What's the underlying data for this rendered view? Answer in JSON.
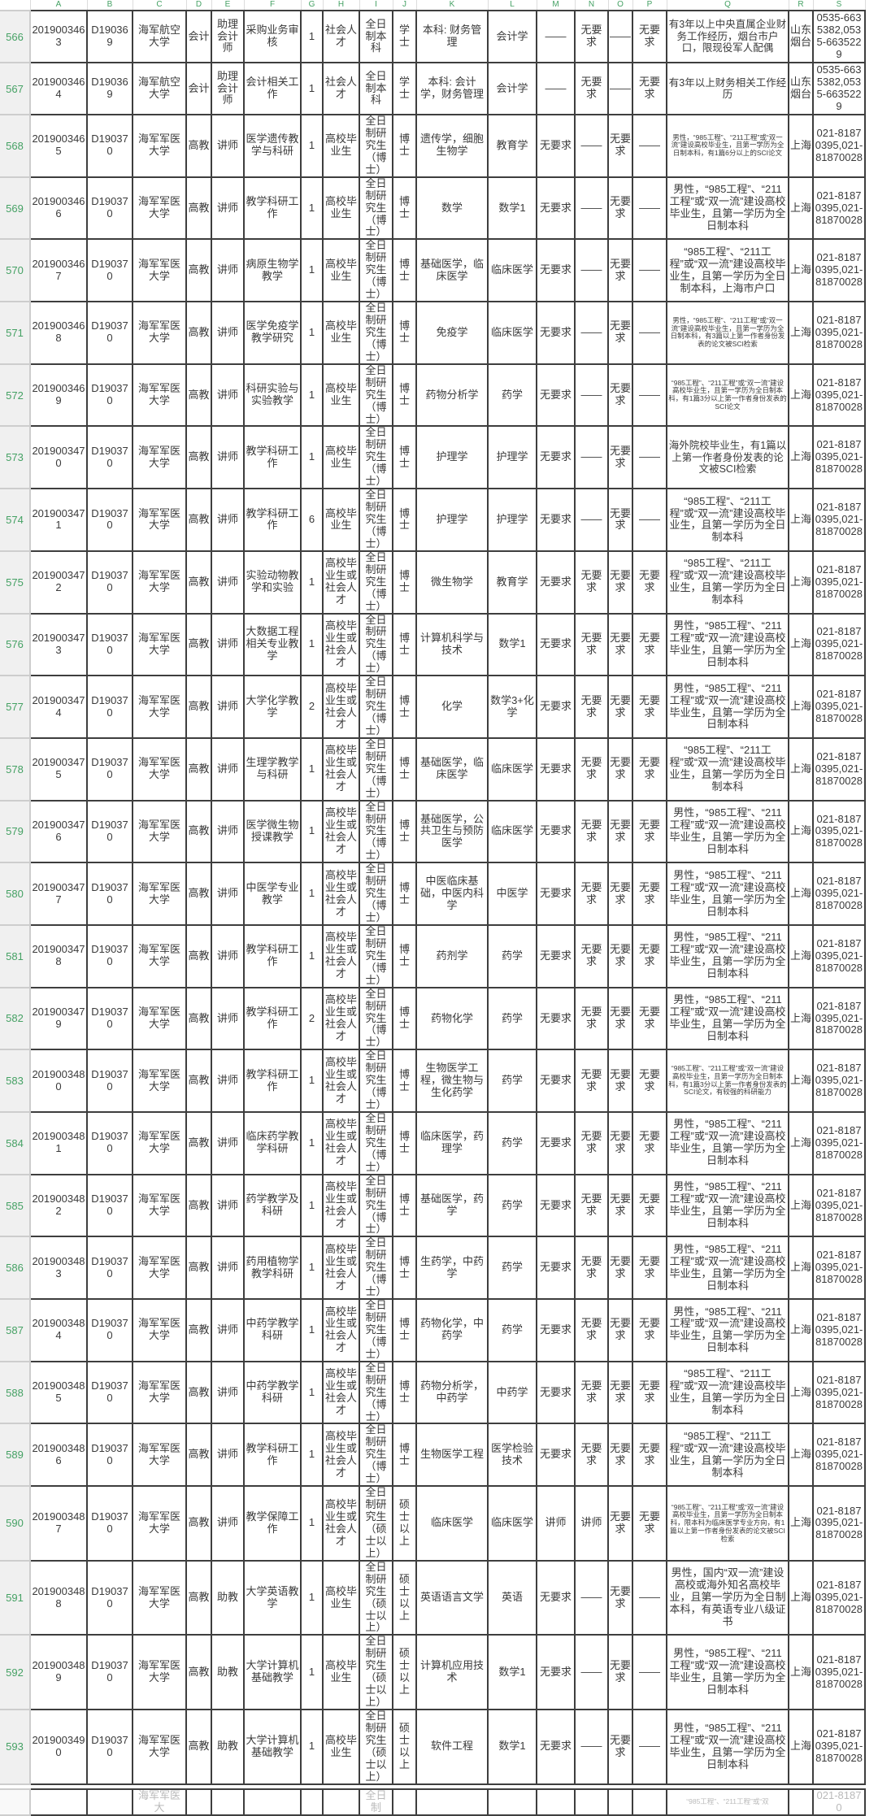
{
  "app": {
    "kind": "mobile-spreadsheet-viewer"
  },
  "colors": {
    "header_green": "#45a164",
    "grid_dark": "#3e3e3e",
    "grid_light": "#cdcdcd",
    "gutter_bg": "#f0f0f0",
    "cell_text": "#3a3a3a"
  },
  "header": {
    "corner": "",
    "columns": [
      "A",
      "B",
      "C",
      "D",
      "E",
      "F",
      "G",
      "H",
      "I",
      "J",
      "K",
      "L",
      "M",
      "N",
      "O",
      "P",
      "Q",
      "R",
      "S"
    ]
  },
  "rows": [
    {
      "n": "566",
      "q_size": "l",
      "cells": [
        "2019003463",
        "D190369",
        "海军航空大学",
        "会计",
        "助理会计师",
        "采购业务审核",
        "1",
        "社会人才",
        "全日制本科",
        "学士",
        "本科: 财务管理",
        "会计学",
        "——",
        "无要求",
        "——",
        "无要求",
        "有3年以上中央直属企业财务工作经历，烟台市户口，限现役军人配偶",
        "山东烟台",
        "0535-6635382,0535-6635229"
      ]
    },
    {
      "n": "567",
      "q_size": "l",
      "cells": [
        "2019003464",
        "D190369",
        "海军航空大学",
        "会计",
        "助理会计师",
        "会计相关工作",
        "1",
        "社会人才",
        "全日制本科",
        "学士",
        "本科: 会计学，财务管理",
        "会计学",
        "——",
        "无要求",
        "——",
        "无要求",
        "有3年以上财务相关工作经历",
        "山东烟台",
        "0535-6635382,0535-6635229"
      ]
    },
    {
      "n": "568",
      "q_size": "s",
      "cells": [
        "2019003465",
        "D190370",
        "海军军医大学",
        "高教",
        "讲师",
        "医学遗传教学与科研",
        "1",
        "高校毕业生",
        "全日制研究生（博士）",
        "博士",
        "遗传学，细胞生物学",
        "教育学",
        "无要求",
        "——",
        "无要求",
        "——",
        "男性，“985工程”、“211工程”或“双一流”建设高校毕业生，且第一学历为全日制本科，有1篇6分以上的SCI论文",
        "上海",
        "021-81870395,021-81870028"
      ]
    },
    {
      "n": "569",
      "q_size": "m",
      "cells": [
        "2019003466",
        "D190370",
        "海军军医大学",
        "高教",
        "讲师",
        "教学科研工作",
        "1",
        "高校毕业生",
        "全日制研究生（博士）",
        "博士",
        "数学",
        "数学1",
        "无要求",
        "——",
        "无要求",
        "——",
        "男性，“985工程”、“211工程”或“双一流”建设高校毕业生，且第一学历为全日制本科",
        "上海",
        "021-81870395,021-81870028"
      ]
    },
    {
      "n": "570",
      "q_size": "m",
      "cells": [
        "2019003467",
        "D190370",
        "海军军医大学",
        "高教",
        "讲师",
        "病原生物学教学",
        "1",
        "高校毕业生",
        "全日制研究生（博士）",
        "博士",
        "基础医学，临床医学",
        "临床医学",
        "无要求",
        "——",
        "无要求",
        "——",
        "“985工程”、“211工程”或“双一流”建设高校毕业生，且第一学历为全日制本科，上海市户口",
        "上海",
        "021-81870395,021-81870028"
      ]
    },
    {
      "n": "571",
      "q_size": "s",
      "cells": [
        "2019003468",
        "D190370",
        "海军军医大学",
        "高教",
        "讲师",
        "医学免疫学教学研究",
        "1",
        "高校毕业生",
        "全日制研究生（博士）",
        "博士",
        "免疫学",
        "临床医学",
        "无要求",
        "——",
        "无要求",
        "——",
        "男性，“985工程”、“211工程”或“双一流”建设高校毕业生，且第一学历为全日制本科，有3篇以上第一作者身份发表的论文被SCI检索",
        "上海",
        "021-81870395,021-81870028"
      ]
    },
    {
      "n": "572",
      "q_size": "s",
      "cells": [
        "2019003469",
        "D190370",
        "海军军医大学",
        "高教",
        "讲师",
        "科研实验与实验教学",
        "1",
        "高校毕业生",
        "全日制研究生（博士）",
        "博士",
        "药物分析学",
        "药学",
        "无要求",
        "——",
        "无要求",
        "——",
        "“985工程”、“211工程”或“双一流”建设高校毕业生，且第一学历为全日制本科，有1篇3分以上第一作者身份发表的SCI论文",
        "上海",
        "021-81870395,021-81870028"
      ]
    },
    {
      "n": "573",
      "q_size": "l",
      "cells": [
        "2019003470",
        "D190370",
        "海军军医大学",
        "高教",
        "讲师",
        "教学科研工作",
        "1",
        "高校毕业生",
        "全日制研究生（博士）",
        "博士",
        "护理学",
        "护理学",
        "无要求",
        "——",
        "无要求",
        "——",
        "海外院校毕业生，有1篇以上第一作者身份发表的论文被SCI检索",
        "上海",
        "021-81870395,021-81870028"
      ]
    },
    {
      "n": "574",
      "q_size": "m",
      "cells": [
        "2019003471",
        "D190370",
        "海军军医大学",
        "高教",
        "讲师",
        "教学科研工作",
        "6",
        "高校毕业生",
        "全日制研究生（博士）",
        "博士",
        "护理学",
        "护理学",
        "无要求",
        "——",
        "无要求",
        "——",
        "“985工程”、“211工程”或“双一流”建设高校毕业生，且第一学历为全日制本科",
        "上海",
        "021-81870395,021-81870028"
      ]
    },
    {
      "n": "575",
      "q_size": "m",
      "cells": [
        "2019003472",
        "D190370",
        "海军军医大学",
        "高教",
        "讲师",
        "实验动物教学和实验",
        "1",
        "高校毕业生或社会人才",
        "全日制研究生（博士）",
        "博士",
        "微生物学",
        "教育学",
        "无要求",
        "无要求",
        "无要求",
        "无要求",
        "“985工程”、“211工程”或“双一流”建设高校毕业生，且第一学历为全日制本科",
        "上海",
        "021-81870395,021-81870028"
      ]
    },
    {
      "n": "576",
      "q_size": "m",
      "cells": [
        "2019003473",
        "D190370",
        "海军军医大学",
        "高教",
        "讲师",
        "大数据工程相关专业教学",
        "1",
        "高校毕业生或社会人才",
        "全日制研究生（博士）",
        "博士",
        "计算机科学与技术",
        "数学1",
        "无要求",
        "无要求",
        "无要求",
        "无要求",
        "男性，“985工程”、“211工程”或“双一流”建设高校毕业生，且第一学历为全日制本科",
        "上海",
        "021-81870395,021-81870028"
      ]
    },
    {
      "n": "577",
      "q_size": "m",
      "cells": [
        "2019003474",
        "D190370",
        "海军军医大学",
        "高教",
        "讲师",
        "大学化学教学",
        "2",
        "高校毕业生或社会人才",
        "全日制研究生（博士）",
        "博士",
        "化学",
        "数学3+化学",
        "无要求",
        "无要求",
        "无要求",
        "无要求",
        "男性，“985工程”、“211工程”或“双一流”建设高校毕业生，且第一学历为全日制本科",
        "上海",
        "021-81870395,021-81870028"
      ]
    },
    {
      "n": "578",
      "q_size": "m",
      "cells": [
        "2019003475",
        "D190370",
        "海军军医大学",
        "高教",
        "讲师",
        "生理学教学与科研",
        "1",
        "高校毕业生或社会人才",
        "全日制研究生（博士）",
        "博士",
        "基础医学，临床医学",
        "临床医学",
        "无要求",
        "无要求",
        "无要求",
        "无要求",
        "“985工程”、“211工程”或“双一流”建设高校毕业生，且第一学历为全日制本科",
        "上海",
        "021-81870395,021-81870028"
      ]
    },
    {
      "n": "579",
      "q_size": "m",
      "cells": [
        "2019003476",
        "D190370",
        "海军军医大学",
        "高教",
        "讲师",
        "医学微生物授课教学",
        "1",
        "高校毕业生或社会人才",
        "全日制研究生（博士）",
        "博士",
        "基础医学，公共卫生与预防医学",
        "临床医学",
        "无要求",
        "无要求",
        "无要求",
        "无要求",
        "男性，“985工程”、“211工程”或“双一流”建设高校毕业生，且第一学历为全日制本科",
        "上海",
        "021-81870395,021-81870028"
      ]
    },
    {
      "n": "580",
      "q_size": "m",
      "cells": [
        "2019003477",
        "D190370",
        "海军军医大学",
        "高教",
        "讲师",
        "中医学专业教学",
        "1",
        "高校毕业生或社会人才",
        "全日制研究生（博士）",
        "博士",
        "中医临床基础，中医内科学",
        "中医学",
        "无要求",
        "无要求",
        "无要求",
        "无要求",
        "男性，“985工程”、“211工程”或“双一流”建设高校毕业生，且第一学历为全日制本科",
        "上海",
        "021-81870395,021-81870028"
      ]
    },
    {
      "n": "581",
      "q_size": "m",
      "cells": [
        "2019003478",
        "D190370",
        "海军军医大学",
        "高教",
        "讲师",
        "教学科研工作",
        "1",
        "高校毕业生或社会人才",
        "全日制研究生（博士）",
        "博士",
        "药剂学",
        "药学",
        "无要求",
        "无要求",
        "无要求",
        "无要求",
        "男性，“985工程”、“211工程”或“双一流”建设高校毕业生，且第一学历为全日制本科",
        "上海",
        "021-81870395,021-81870028"
      ]
    },
    {
      "n": "582",
      "q_size": "m",
      "cells": [
        "2019003479",
        "D190370",
        "海军军医大学",
        "高教",
        "讲师",
        "教学科研工作",
        "2",
        "高校毕业生或社会人才",
        "全日制研究生（博士）",
        "博士",
        "药物化学",
        "药学",
        "无要求",
        "无要求",
        "无要求",
        "无要求",
        "男性，“985工程”、“211工程”或“双一流”建设高校毕业生，且第一学历为全日制本科",
        "上海",
        "021-81870395,021-81870028"
      ]
    },
    {
      "n": "583",
      "q_size": "s",
      "cells": [
        "2019003480",
        "D190370",
        "海军军医大学",
        "高教",
        "讲师",
        "教学科研工作",
        "1",
        "高校毕业生或社会人才",
        "全日制研究生（博士）",
        "博士",
        "生物医学工程，微生物与生化药学",
        "药学",
        "无要求",
        "无要求",
        "无要求",
        "无要求",
        "“985工程”、“211工程”或“双一流”建设高校毕业生，且第一学历为全日制本科，有1篇3分以上第一作者身份发表的SCI论文，有较强的科研能力",
        "上海",
        "021-81870395,021-81870028"
      ]
    },
    {
      "n": "584",
      "q_size": "m",
      "cells": [
        "2019003481",
        "D190370",
        "海军军医大学",
        "高教",
        "讲师",
        "临床药学教学科研",
        "1",
        "高校毕业生或社会人才",
        "全日制研究生（博士）",
        "博士",
        "临床医学，药理学",
        "药学",
        "无要求",
        "无要求",
        "无要求",
        "无要求",
        "男性，“985工程”、“211工程”或“双一流”建设高校毕业生，且第一学历为全日制本科",
        "上海",
        "021-81870395,021-81870028"
      ]
    },
    {
      "n": "585",
      "q_size": "m",
      "cells": [
        "2019003482",
        "D190370",
        "海军军医大学",
        "高教",
        "讲师",
        "药学教学及科研",
        "1",
        "高校毕业生或社会人才",
        "全日制研究生（博士）",
        "博士",
        "基础医学，药学",
        "药学",
        "无要求",
        "无要求",
        "无要求",
        "无要求",
        "男性，“985工程”、“211工程”或“双一流”建设高校毕业生，且第一学历为全日制本科",
        "上海",
        "021-81870395,021-81870028"
      ]
    },
    {
      "n": "586",
      "q_size": "m",
      "cells": [
        "2019003483",
        "D190370",
        "海军军医大学",
        "高教",
        "讲师",
        "药用植物学教学科研",
        "1",
        "高校毕业生或社会人才",
        "全日制研究生（博士）",
        "博士",
        "生药学，中药学",
        "药学",
        "无要求",
        "无要求",
        "无要求",
        "无要求",
        "男性，“985工程”、“211工程”或“双一流”建设高校毕业生，且第一学历为全日制本科",
        "上海",
        "021-81870395,021-81870028"
      ]
    },
    {
      "n": "587",
      "q_size": "m",
      "cells": [
        "2019003484",
        "D190370",
        "海军军医大学",
        "高教",
        "讲师",
        "中药学教学科研",
        "1",
        "高校毕业生或社会人才",
        "全日制研究生（博士）",
        "博士",
        "药物化学，中药学",
        "药学",
        "无要求",
        "无要求",
        "无要求",
        "无要求",
        "男性，“985工程”、“211工程”或“双一流”建设高校毕业生，且第一学历为全日制本科",
        "上海",
        "021-81870395,021-81870028"
      ]
    },
    {
      "n": "588",
      "q_size": "m",
      "cells": [
        "2019003485",
        "D190370",
        "海军军医大学",
        "高教",
        "讲师",
        "中药学教学科研",
        "1",
        "高校毕业生或社会人才",
        "全日制研究生（博士）",
        "博士",
        "药物分析学，中药学",
        "中药学",
        "无要求",
        "无要求",
        "无要求",
        "无要求",
        "“985工程”、“211工程”或“双一流”建设高校毕业生，且第一学历为全日制本科",
        "上海",
        "021-81870395,021-81870028"
      ]
    },
    {
      "n": "589",
      "q_size": "m",
      "cells": [
        "2019003486",
        "D190370",
        "海军军医大学",
        "高教",
        "讲师",
        "教学科研工作",
        "1",
        "高校毕业生或社会人才",
        "全日制研究生（博士）",
        "博士",
        "生物医学工程",
        "医学检验技术",
        "无要求",
        "无要求",
        "无要求",
        "无要求",
        "“985工程”、“211工程”或“双一流”建设高校毕业生，且第一学历为全日制本科",
        "上海",
        "021-81870395,021-81870028"
      ]
    },
    {
      "n": "590",
      "q_size": "s",
      "cells": [
        "2019003487",
        "D190370",
        "海军军医大学",
        "高教",
        "讲师",
        "教学保障工作",
        "1",
        "高校毕业生或社会人才",
        "全日制研究生（硕士以上）",
        "硕士以上",
        "临床医学",
        "临床医学",
        "讲师",
        "讲师",
        "无要求",
        "无要求",
        "“985工程”、“211工程”或“双一流”建设高校毕业生，且第一学历为全日制本科，限本科为临床医学专业方向，有1篇以上第一作者身份发表的论文被SCI检索",
        "上海",
        "021-81870395,021-81870028"
      ]
    },
    {
      "n": "591",
      "q_size": "m",
      "cells": [
        "2019003488",
        "D190370",
        "海军军医大学",
        "高教",
        "助教",
        "大学英语教学",
        "1",
        "高校毕业生",
        "全日制研究生（硕士以上）",
        "硕士以上",
        "英语语言文学",
        "英语",
        "无要求",
        "——",
        "无要求",
        "——",
        "男性，国内“双一流”建设高校或海外知名高校毕业，且第一学历为全日制本科，有英语专业八级证书",
        "上海",
        "021-81870395,021-81870028"
      ]
    },
    {
      "n": "592",
      "q_size": "m",
      "cells": [
        "2019003489",
        "D190370",
        "海军军医大学",
        "高教",
        "助教",
        "大学计算机基础教学",
        "1",
        "高校毕业生",
        "全日制研究生（硕士以上）",
        "硕士以上",
        "计算机应用技术",
        "数学1",
        "无要求",
        "——",
        "无要求",
        "——",
        "男性，“985工程”、“211工程”或“双一流”建设高校毕业生，且第一学历为全日制本科",
        "上海",
        "021-81870395,021-81870028"
      ]
    },
    {
      "n": "593",
      "q_size": "m",
      "cells": [
        "2019003490",
        "D190370",
        "海军军医大学",
        "高教",
        "助教",
        "大学计算机基础教学",
        "1",
        "高校毕业生",
        "全日制研究生（硕士以上）",
        "硕士以上",
        "软件工程",
        "数学1",
        "无要求",
        "——",
        "无要求",
        "——",
        "男性，“985工程”、“211工程”或“双一流”建设高校毕业生，且第一学历为全日制本科",
        "上海",
        "021-81870395,021-81870028"
      ]
    }
  ],
  "partial_row": {
    "n": "",
    "q_size": "s",
    "cells": [
      "",
      "",
      "海军军医大",
      "",
      "",
      "",
      "",
      "",
      "全日制",
      "",
      "",
      "",
      "",
      "",
      "",
      "",
      "“985工程”、“211工程”或“双",
      "",
      "021-81870"
    ]
  }
}
